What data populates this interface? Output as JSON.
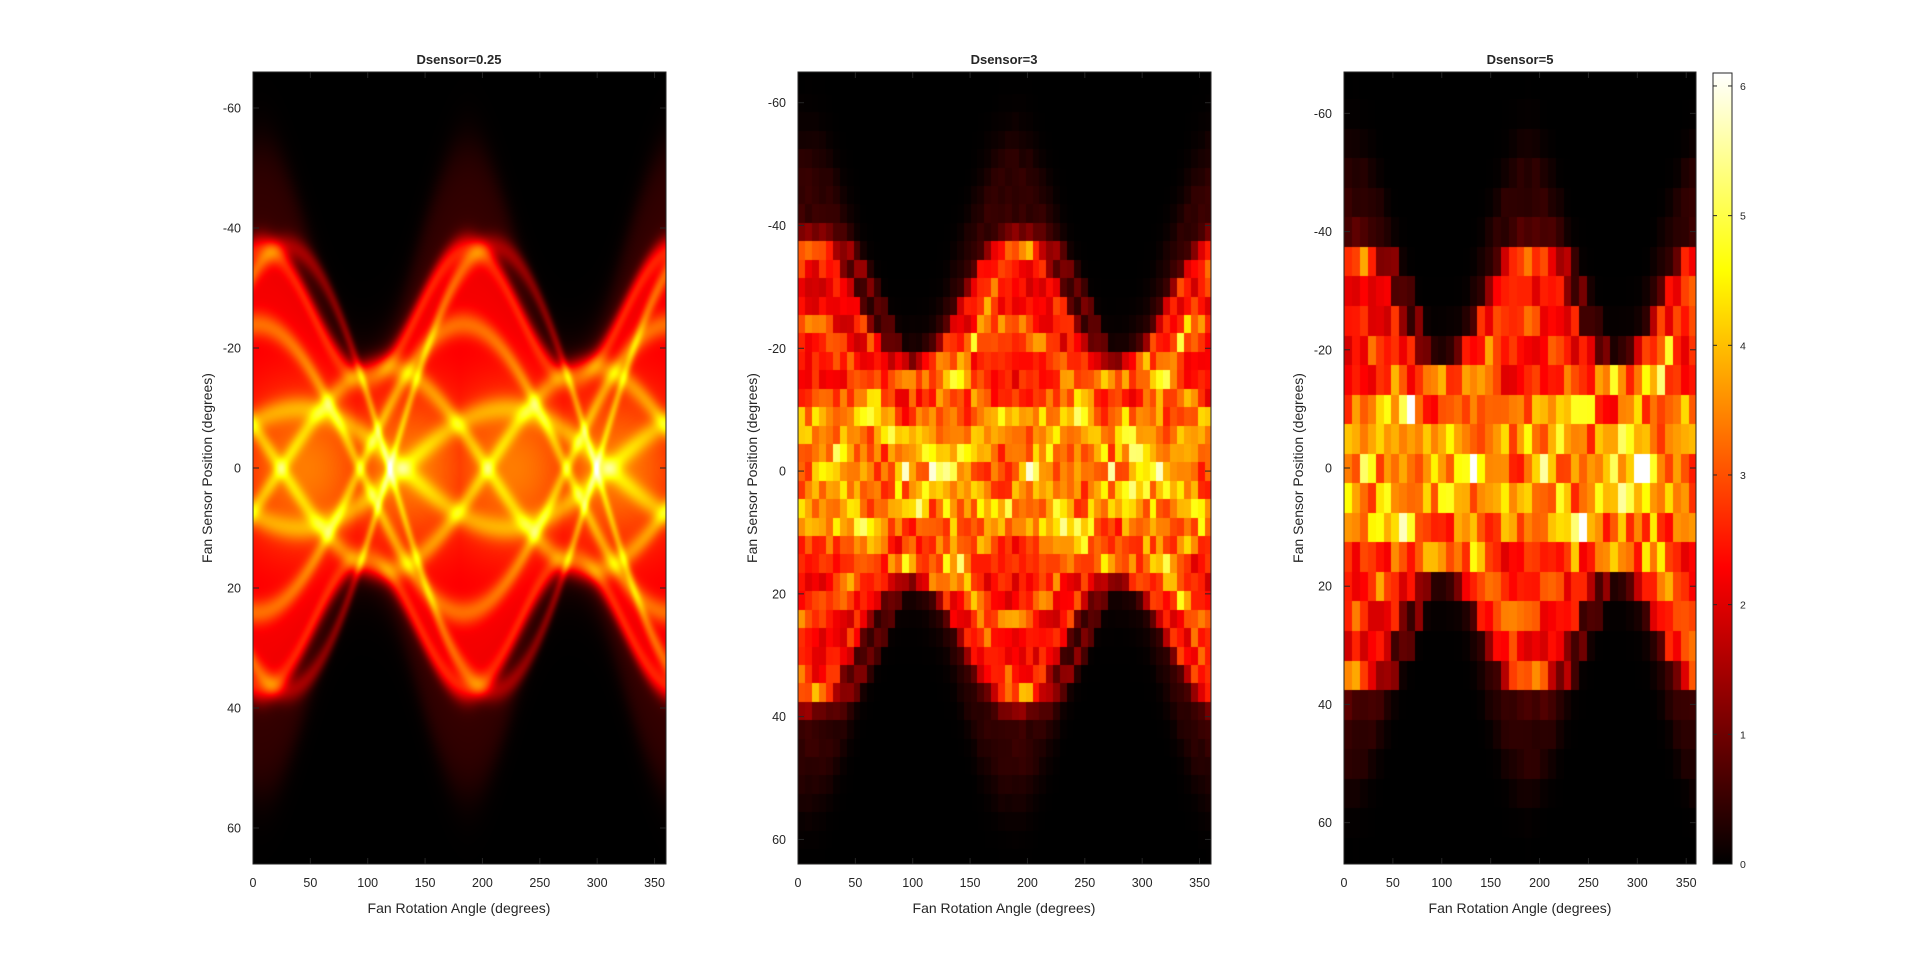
{
  "chart_data": [
    {
      "type": "heatmap",
      "title": "Dsensor=0.25",
      "xlabel": "Fan Rotation Angle (degrees)",
      "ylabel": "Fan Sensor Position (degrees)",
      "xlim": [
        0,
        360
      ],
      "ylim": [
        66,
        -66
      ],
      "xticks": [
        0,
        50,
        100,
        150,
        200,
        250,
        300,
        350
      ],
      "yticks": [
        -60,
        -40,
        -20,
        0,
        20,
        40,
        60
      ],
      "sensor_spacing_deg": 0.25,
      "colormap": "hot",
      "clim": [
        0,
        6.1
      ]
    },
    {
      "type": "heatmap",
      "title": "Dsensor=3",
      "xlabel": "Fan Rotation Angle (degrees)",
      "ylabel": "Fan Sensor Position (degrees)",
      "xlim": [
        0,
        360
      ],
      "ylim": [
        64,
        -65
      ],
      "xticks": [
        0,
        50,
        100,
        150,
        200,
        250,
        300,
        350
      ],
      "yticks": [
        -60,
        -40,
        -20,
        0,
        20,
        40,
        60
      ],
      "sensor_spacing_deg": 3,
      "colormap": "hot",
      "clim": [
        0,
        6.1
      ]
    },
    {
      "type": "heatmap",
      "title": "Dsensor=5",
      "xlabel": "Fan Rotation Angle (degrees)",
      "ylabel": "Fan Sensor Position (degrees)",
      "xlim": [
        0,
        360
      ],
      "ylim": [
        67,
        -67
      ],
      "xticks": [
        0,
        50,
        100,
        150,
        200,
        250,
        300,
        350
      ],
      "yticks": [
        -60,
        -40,
        -20,
        0,
        20,
        40,
        60
      ],
      "sensor_spacing_deg": 5,
      "colormap": "hot",
      "clim": [
        0,
        6.1
      ],
      "colorbar": {
        "ticks": [
          0,
          1,
          2,
          3,
          4,
          5,
          6
        ],
        "range": [
          0,
          6.1
        ],
        "location": "right"
      }
    }
  ],
  "colors": {
    "background": "#ffffff",
    "axes": "#262626",
    "colormap": [
      "#000000",
      "#ff0000",
      "#ffff00",
      "#ffffff"
    ]
  }
}
